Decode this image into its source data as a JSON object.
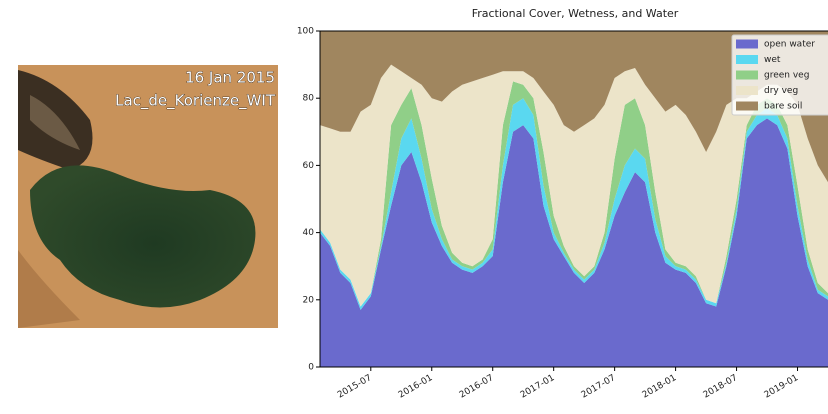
{
  "image": {
    "date": "16 Jan 2015",
    "label": "Lac_de_Korienze_WIT"
  },
  "chart_data": {
    "type": "stacked-area",
    "title": "Fractional Cover, Wetness, and Water",
    "x": [
      "2015-02",
      "2015-03",
      "2015-04",
      "2015-05",
      "2015-06",
      "2015-07",
      "2015-08",
      "2015-09",
      "2015-10",
      "2015-11",
      "2015-12",
      "2016-01",
      "2016-02",
      "2016-03",
      "2016-04",
      "2016-05",
      "2016-06",
      "2016-07",
      "2016-08",
      "2016-09",
      "2016-10",
      "2016-11",
      "2016-12",
      "2017-01",
      "2017-02",
      "2017-03",
      "2017-04",
      "2017-05",
      "2017-06",
      "2017-07",
      "2017-08",
      "2017-09",
      "2017-10",
      "2017-11",
      "2017-12",
      "2018-01",
      "2018-02",
      "2018-03",
      "2018-04",
      "2018-05",
      "2018-06",
      "2018-07",
      "2018-08",
      "2018-09",
      "2018-10",
      "2018-11",
      "2018-12",
      "2019-01",
      "2019-02",
      "2019-03",
      "2019-04"
    ],
    "series": [
      {
        "name": "open water",
        "color": "#6a6acd",
        "values": [
          40,
          36,
          28,
          25,
          17,
          21,
          35,
          48,
          60,
          64,
          55,
          43,
          36,
          31,
          29,
          28,
          30,
          33,
          55,
          70,
          72,
          68,
          48,
          38,
          33,
          28,
          25,
          28,
          35,
          45,
          52,
          58,
          55,
          40,
          31,
          29,
          28,
          25,
          19,
          18,
          30,
          45,
          68,
          72,
          74,
          72,
          65,
          45,
          30,
          22,
          20
        ]
      },
      {
        "name": "wet",
        "color": "#5ad8f0",
        "values": [
          1,
          1,
          1,
          1,
          1,
          1,
          1,
          4,
          8,
          10,
          7,
          4,
          2,
          1,
          1,
          1,
          1,
          2,
          5,
          8,
          8,
          7,
          6,
          2,
          1,
          1,
          1,
          1,
          2,
          5,
          8,
          7,
          7,
          4,
          2,
          1,
          1,
          1,
          1,
          1,
          1,
          2,
          2,
          3,
          3,
          3,
          3,
          3,
          2,
          1,
          1
        ]
      },
      {
        "name": "green veg",
        "color": "#90cf88",
        "values": [
          0,
          0,
          0,
          0,
          0,
          0,
          2,
          20,
          10,
          9,
          10,
          9,
          4,
          2,
          1,
          1,
          1,
          3,
          12,
          7,
          4,
          5,
          10,
          5,
          2,
          1,
          1,
          1,
          3,
          12,
          18,
          15,
          10,
          8,
          2,
          1,
          1,
          1,
          0,
          0,
          2,
          3,
          2,
          3,
          3,
          3,
          4,
          6,
          3,
          2,
          1
        ]
      },
      {
        "name": "dry veg",
        "color": "#ece4c9",
        "values": [
          31,
          34,
          41,
          44,
          58,
          56,
          48,
          18,
          10,
          3,
          12,
          24,
          37,
          48,
          53,
          55,
          54,
          49,
          16,
          3,
          4,
          6,
          18,
          33,
          36,
          40,
          45,
          44,
          38,
          24,
          10,
          9,
          12,
          28,
          41,
          47,
          45,
          43,
          44,
          51,
          45,
          30,
          8,
          4,
          4,
          6,
          10,
          24,
          33,
          35,
          33
        ]
      },
      {
        "name": "bare soil",
        "color": "#a0865f",
        "values": [
          28,
          29,
          30,
          30,
          24,
          22,
          14,
          10,
          12,
          14,
          16,
          20,
          21,
          18,
          16,
          15,
          14,
          13,
          12,
          12,
          12,
          14,
          18,
          22,
          28,
          30,
          28,
          26,
          22,
          14,
          12,
          11,
          16,
          20,
          24,
          22,
          25,
          30,
          36,
          30,
          22,
          20,
          20,
          18,
          16,
          16,
          18,
          22,
          32,
          40,
          45
        ]
      }
    ],
    "xlim": [
      "2015-02",
      "2019-04"
    ],
    "xticks": [
      "2015-07",
      "2016-01",
      "2016-07",
      "2017-01",
      "2017-07",
      "2018-01",
      "2018-07",
      "2019-01"
    ],
    "ylim": [
      0,
      100
    ],
    "yticks": [
      0,
      20,
      40,
      60,
      80,
      100
    ],
    "legend": "upper right"
  }
}
